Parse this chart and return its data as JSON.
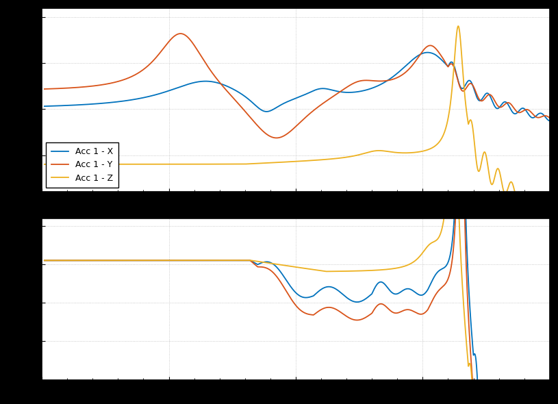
{
  "line_colors": [
    "#0072BD",
    "#D95319",
    "#EDB120"
  ],
  "line_labels": [
    "Acc 1 - X",
    "Acc 1 - Y",
    "Acc 1 - Z"
  ],
  "background_color": "#000000",
  "axes_bg_color": "#ffffff",
  "grid_color": "#aaaaaa",
  "linewidth": 1.3
}
